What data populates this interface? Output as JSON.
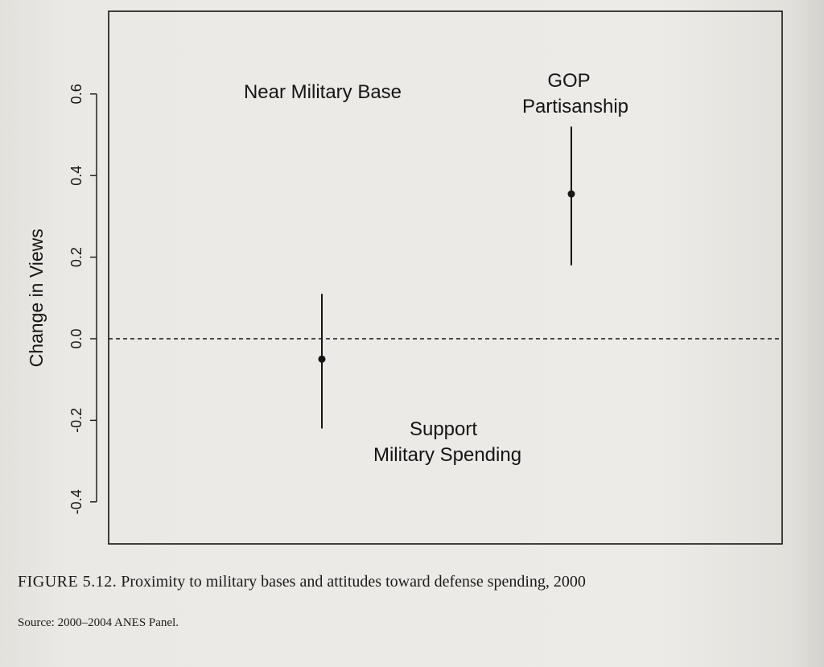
{
  "caption": {
    "figure_number": "FIGURE 5.12.",
    "text": "Proximity to military bases and attitudes toward defense spending, 2000"
  },
  "source": "Source: 2000–2004 ANES Panel.",
  "colors": {
    "ink": "#151515",
    "paper": "#ebe9e5"
  },
  "chart_data": {
    "type": "scatter",
    "title": "",
    "xlabel": "",
    "ylabel": "Change in Views",
    "ylim": [
      -0.5,
      0.8
    ],
    "yticks": [
      -0.4,
      -0.2,
      0.0,
      0.2,
      0.4,
      0.6
    ],
    "ytick_labels": [
      "-0.4",
      "-0.2",
      "0.0",
      "0.2",
      "0.4",
      "0.6"
    ],
    "xlim": [
      0,
      3
    ],
    "reference_line": {
      "y": 0.0,
      "style": "dashed"
    },
    "grid": false,
    "points": [
      {
        "x": 1.0,
        "y": -0.05,
        "low": -0.22,
        "high": 0.11
      },
      {
        "x": 2.1,
        "y": 0.355,
        "low": 0.18,
        "high": 0.52
      }
    ],
    "annotations": [
      {
        "lines": [
          "Near Military Base"
        ],
        "x": 1.38,
        "y": 0.615
      },
      {
        "lines": [
          "GOP",
          "Partisanship"
        ],
        "x": 2.1,
        "y": 0.63
      },
      {
        "lines": [
          "Support",
          "Military Spending"
        ],
        "x": 1.5,
        "y": -0.225
      }
    ]
  }
}
